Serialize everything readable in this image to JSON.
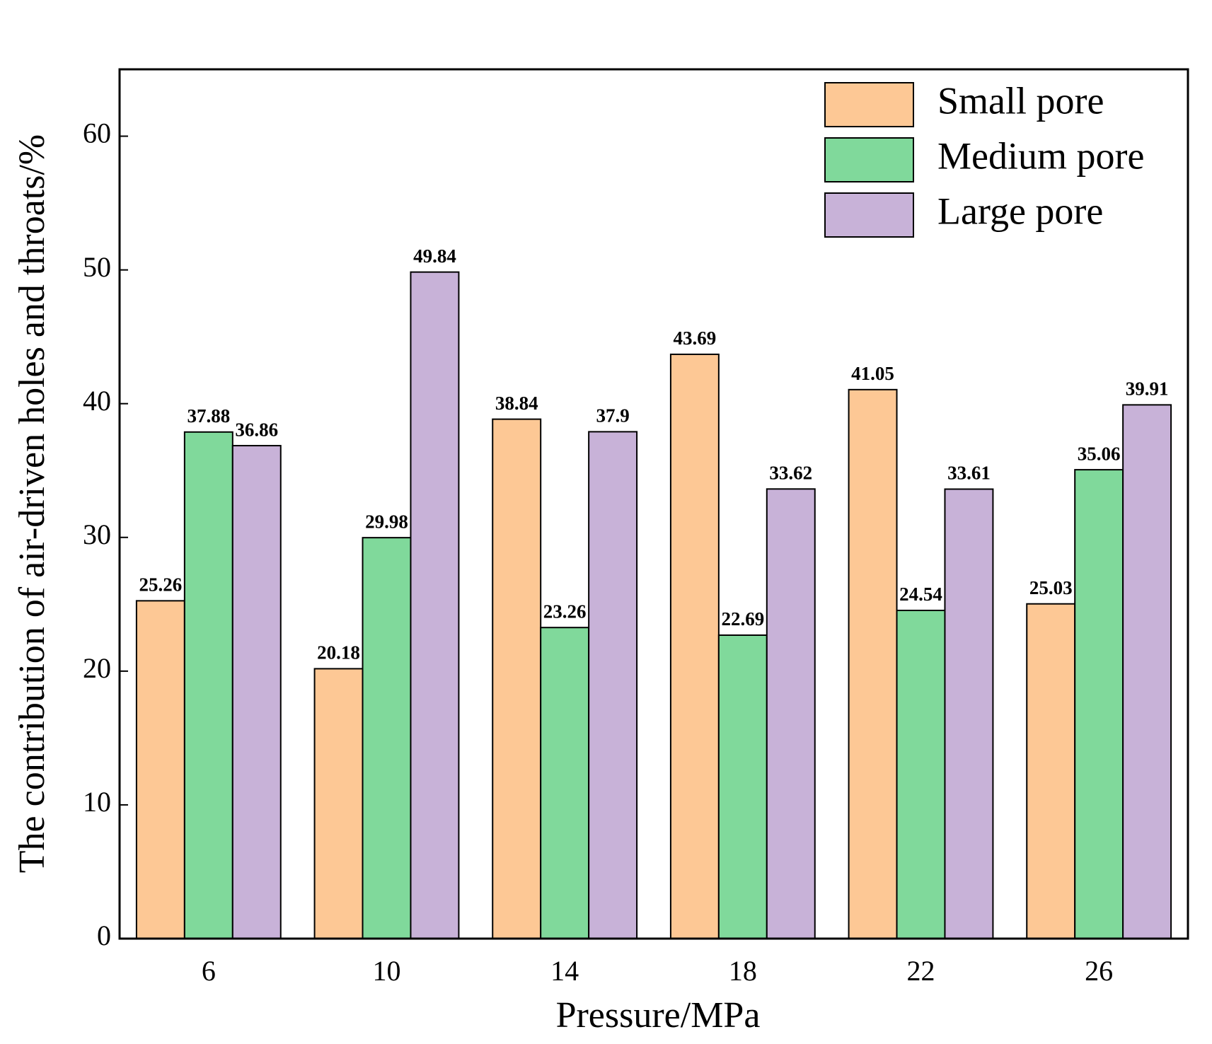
{
  "chart_data": {
    "type": "bar",
    "x_label": "Pressure/MPa",
    "y_label": "The contribution of air-driven holes and throats/%",
    "categories": [
      "6",
      "10",
      "14",
      "18",
      "22",
      "26"
    ],
    "series": [
      {
        "name": "Small pore",
        "color": "#fdc895",
        "values": [
          25.26,
          20.18,
          38.84,
          43.69,
          41.05,
          25.03
        ]
      },
      {
        "name": "Medium pore",
        "color": "#80d99b",
        "values": [
          37.88,
          29.98,
          23.26,
          22.69,
          24.54,
          35.06
        ]
      },
      {
        "name": "Large pore",
        "color": "#c8b2d8",
        "values": [
          36.86,
          49.84,
          37.9,
          33.62,
          33.61,
          39.91
        ]
      }
    ],
    "ylim": [
      0,
      65
    ],
    "yticks": [
      0,
      10,
      20,
      30,
      40,
      50,
      60
    ],
    "legend": "upper right"
  }
}
